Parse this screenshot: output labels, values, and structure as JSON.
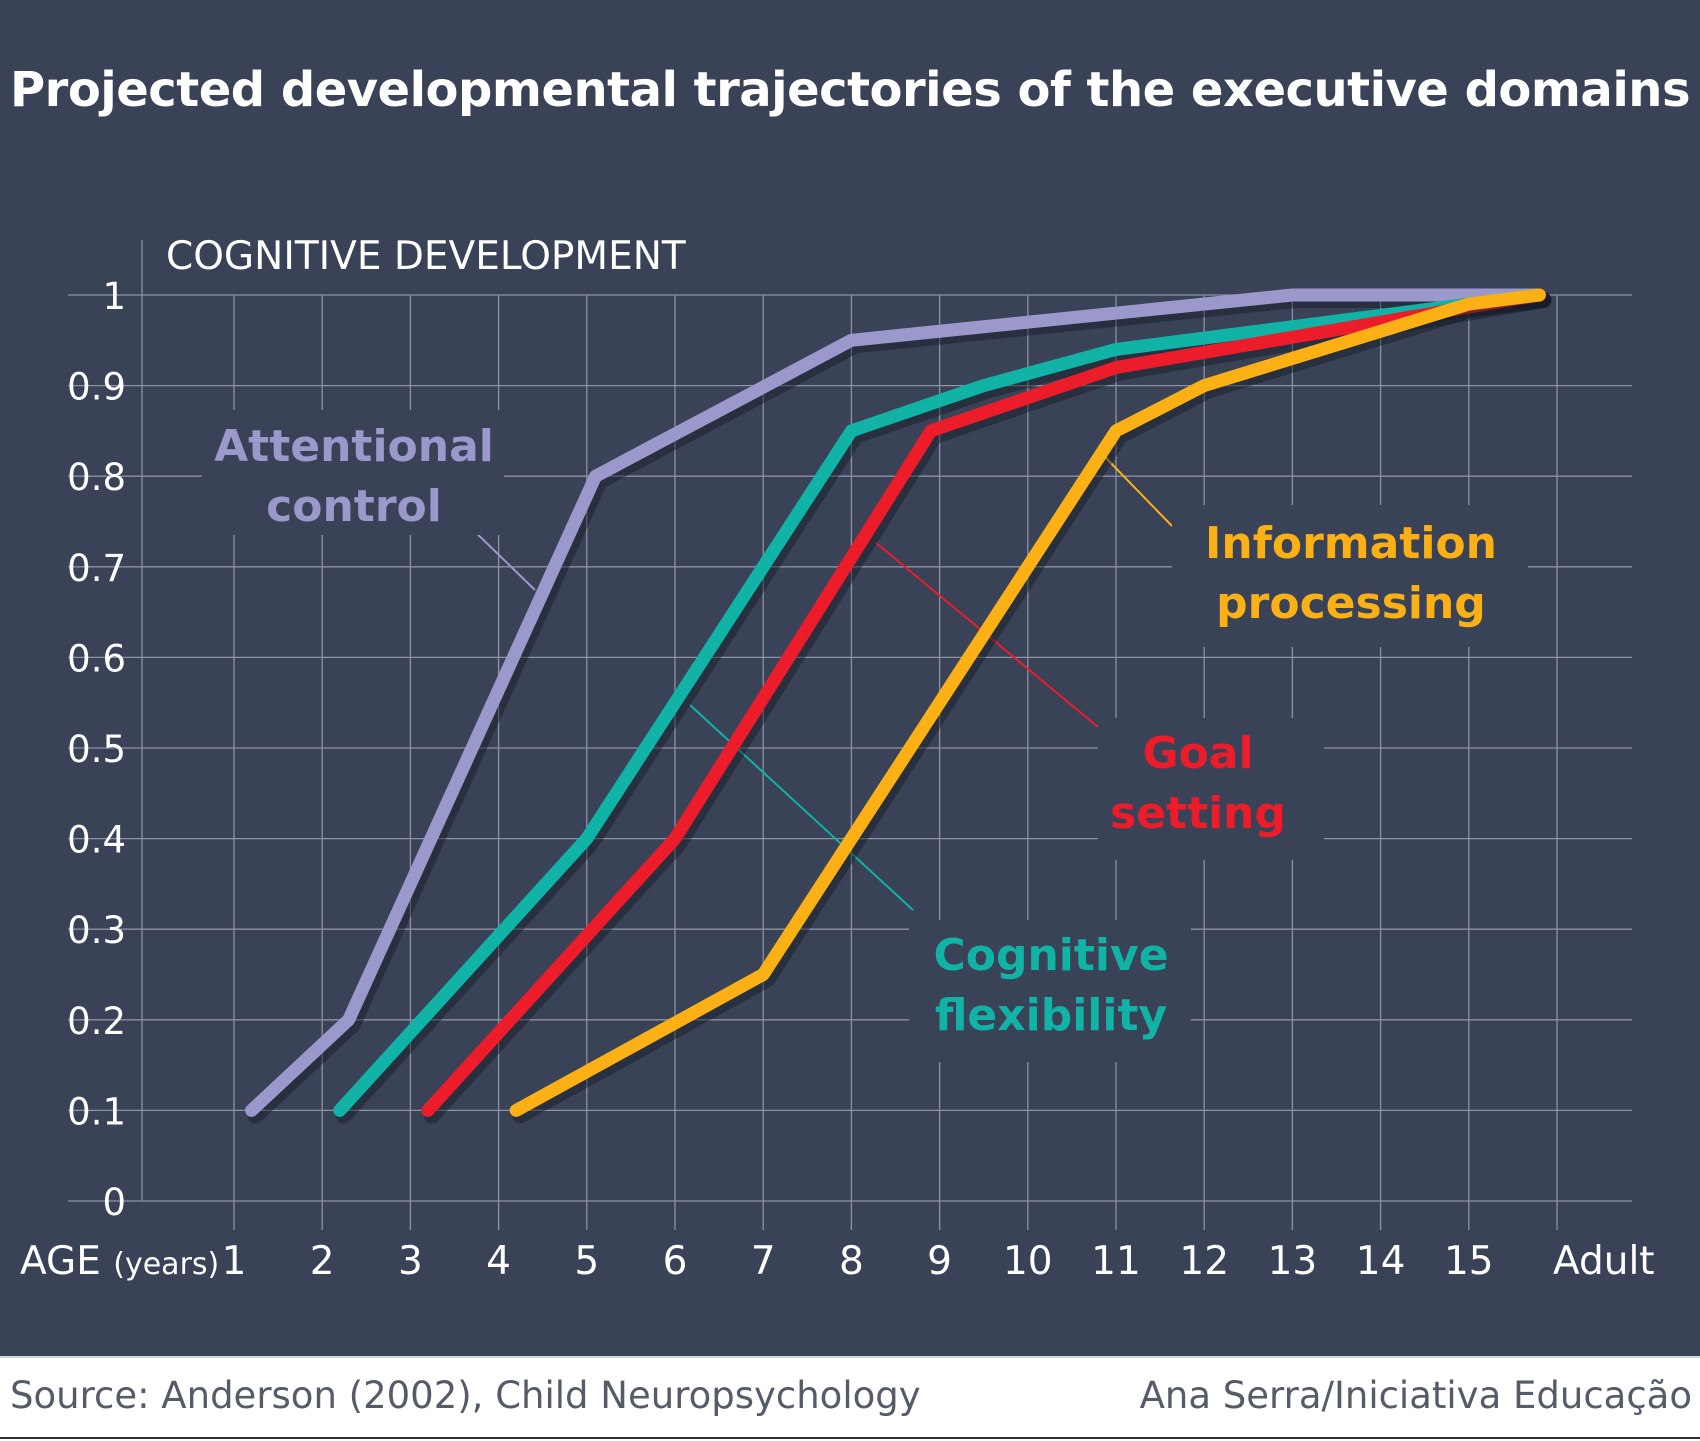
{
  "title": "Projected developmental trajectories of the executive domains",
  "source": "Source: Anderson (2002), Child Neuropsychology",
  "credit": "Ana Serra/Iniciativa Educação",
  "colors": {
    "background": "#394256",
    "grid": "#8c93a3",
    "text": "#ffffff",
    "attentional_control": "#9b98cc",
    "cognitive_flexibility": "#10b3a6",
    "goal_setting": "#ec1c2a",
    "information_processing": "#fbb116"
  },
  "chart_data": {
    "type": "line",
    "ylabel": "COGNITIVE DEVELOPMENT",
    "xlabel_main": "AGE",
    "xlabel_unit": "(years)",
    "x_ticks": [
      "1",
      "2",
      "3",
      "4",
      "5",
      "6",
      "7",
      "8",
      "9",
      "10",
      "11",
      "12",
      "13",
      "14",
      "15",
      "Adult"
    ],
    "y_ticks": [
      "0",
      "0.1",
      "0.2",
      "0.3",
      "0.4",
      "0.5",
      "0.6",
      "0.7",
      "0.8",
      "0.9",
      "1"
    ],
    "ylim": [
      0,
      1
    ],
    "series": [
      {
        "name": "Attentional control",
        "label_lines": [
          "Attentional",
          "control"
        ],
        "color": "#9b98cc",
        "points": [
          [
            1.2,
            0.1
          ],
          [
            2.3,
            0.2
          ],
          [
            5.1,
            0.8
          ],
          [
            8.0,
            0.95
          ],
          [
            13.0,
            1.0
          ],
          [
            15.8,
            1.0
          ]
        ]
      },
      {
        "name": "Cognitive flexibility",
        "label_lines": [
          "Cognitive",
          "flexibility"
        ],
        "color": "#10b3a6",
        "points": [
          [
            2.2,
            0.1
          ],
          [
            5.0,
            0.4
          ],
          [
            8.0,
            0.85
          ],
          [
            9.5,
            0.9
          ],
          [
            11.0,
            0.94
          ],
          [
            15.8,
            1.0
          ]
        ]
      },
      {
        "name": "Goal setting",
        "label_lines": [
          "Goal",
          "setting"
        ],
        "color": "#ec1c2a",
        "points": [
          [
            3.2,
            0.1
          ],
          [
            6.0,
            0.4
          ],
          [
            8.9,
            0.85
          ],
          [
            11.0,
            0.92
          ],
          [
            15.8,
            1.0
          ]
        ]
      },
      {
        "name": "Information processing",
        "label_lines": [
          "Information",
          "processing"
        ],
        "color": "#fbb116",
        "points": [
          [
            4.2,
            0.1
          ],
          [
            7.0,
            0.25
          ],
          [
            11.0,
            0.85
          ],
          [
            12.0,
            0.9
          ],
          [
            15.0,
            0.99
          ],
          [
            15.8,
            1.0
          ]
        ]
      }
    ]
  }
}
